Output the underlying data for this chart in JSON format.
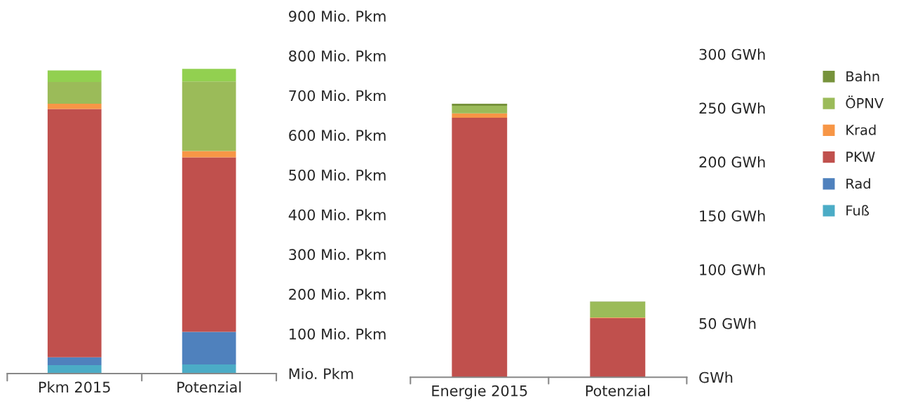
{
  "chart_data": [
    {
      "type": "bar",
      "stacked": true,
      "categories": [
        "Pkm 2015",
        "Potenzial"
      ],
      "ylim": [
        0,
        900
      ],
      "yticks": [
        {
          "value": 0,
          "label": "Mio. Pkm"
        },
        {
          "value": 100,
          "label": "100 Mio. Pkm"
        },
        {
          "value": 200,
          "label": "200 Mio. Pkm"
        },
        {
          "value": 300,
          "label": "300 Mio. Pkm"
        },
        {
          "value": 400,
          "label": "400 Mio. Pkm"
        },
        {
          "value": 500,
          "label": "500 Mio. Pkm"
        },
        {
          "value": 600,
          "label": "600 Mio. Pkm"
        },
        {
          "value": 700,
          "label": "700 Mio. Pkm"
        },
        {
          "value": 800,
          "label": "800 Mio. Pkm"
        },
        {
          "value": 900,
          "label": "900 Mio. Pkm"
        }
      ],
      "grid": false,
      "legend": false,
      "series": [
        {
          "color": "#4bacc6",
          "values": [
            21,
            23
          ]
        },
        {
          "color": "#4f81bd",
          "values": [
            20,
            82
          ]
        },
        {
          "color": "#c0504d",
          "values": [
            625,
            439
          ]
        },
        {
          "color": "#f79646",
          "values": [
            13,
            16
          ]
        },
        {
          "color": "#9bbb59",
          "values": [
            55,
            175
          ]
        },
        {
          "color": "#92d050",
          "values": [
            29,
            32
          ]
        }
      ]
    },
    {
      "type": "bar",
      "stacked": true,
      "categories": [
        "Energie 2015",
        "Potenzial"
      ],
      "ylim": [
        0,
        300
      ],
      "yticks": [
        {
          "value": 0,
          "label": "GWh"
        },
        {
          "value": 50,
          "label": "50 GWh"
        },
        {
          "value": 100,
          "label": "100 GWh"
        },
        {
          "value": 150,
          "label": "150 GWh"
        },
        {
          "value": 200,
          "label": "200 GWh"
        },
        {
          "value": 250,
          "label": "250 GWh"
        },
        {
          "value": 300,
          "label": "300 GWh"
        }
      ],
      "grid": false,
      "legend": "right",
      "series": [
        {
          "name": "Fuß",
          "color": "#4bacc6",
          "values": [
            0,
            0
          ]
        },
        {
          "name": "Rad",
          "color": "#4f81bd",
          "values": [
            0,
            0
          ]
        },
        {
          "name": "PKW",
          "color": "#c0504d",
          "values": [
            241,
            55
          ]
        },
        {
          "name": "Krad",
          "color": "#f79646",
          "values": [
            4,
            0.5
          ]
        },
        {
          "name": "ÖPNV",
          "color": "#9bbb59",
          "values": [
            7,
            14.5
          ]
        },
        {
          "name": "Bahn",
          "color": "#77933c",
          "values": [
            2,
            0.3
          ]
        }
      ]
    }
  ]
}
